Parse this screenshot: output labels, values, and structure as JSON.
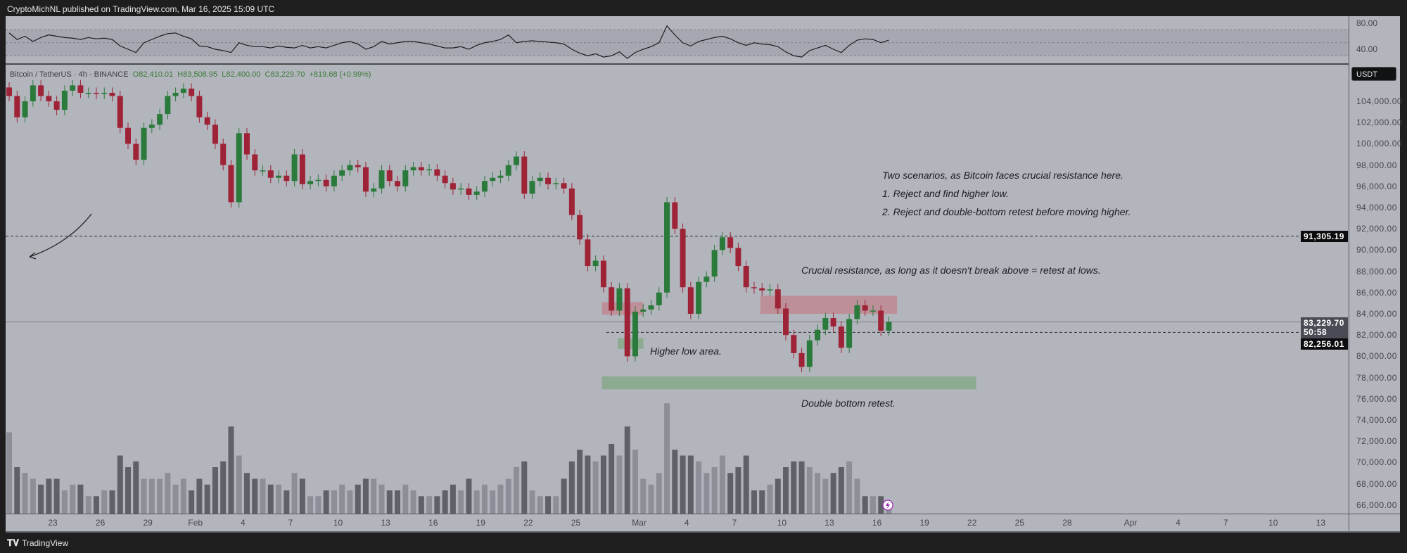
{
  "header": {
    "published": "CryptoMichNL published on TradingView.com, Mar 16, 2025 15:09 UTC"
  },
  "legend": {
    "symbol": "Bitcoin / TetherUS · 4h · BINANCE",
    "open": "O82,410.01",
    "high": "H83,508.95",
    "low": "L82,400.00",
    "close": "C83,229.70",
    "change": "+819.68 (+0.99%)"
  },
  "price_axis": {
    "currency": "USDT",
    "ticks": [
      "104,000.00",
      "102,000.00",
      "100,000.00",
      "98,000.00",
      "96,000.00",
      "94,000.00",
      "92,000.00",
      "90,000.00",
      "88,000.00",
      "86,000.00",
      "84,000.00",
      "82,000.00",
      "80,000.00",
      "78,000.00",
      "76,000.00",
      "74,000.00",
      "72,000.00",
      "70,000.00",
      "68,000.00",
      "66,000.00"
    ],
    "labels": {
      "resistance_line": "91,305.19",
      "last_price": "83,229.70",
      "countdown": "50:58",
      "support_line": "82,256.01"
    }
  },
  "rsi_axis": {
    "ticks": [
      "80.00",
      "40.00"
    ]
  },
  "time_axis": {
    "ticks": [
      {
        "label": "23",
        "day": 0
      },
      {
        "label": "26",
        "day": 3
      },
      {
        "label": "29",
        "day": 6
      },
      {
        "label": "Feb",
        "day": 9
      },
      {
        "label": "4",
        "day": 12
      },
      {
        "label": "7",
        "day": 15
      },
      {
        "label": "10",
        "day": 18
      },
      {
        "label": "13",
        "day": 21
      },
      {
        "label": "16",
        "day": 24
      },
      {
        "label": "19",
        "day": 27
      },
      {
        "label": "22",
        "day": 30
      },
      {
        "label": "25",
        "day": 33
      },
      {
        "label": "Mar",
        "day": 37
      },
      {
        "label": "4",
        "day": 40
      },
      {
        "label": "7",
        "day": 43
      },
      {
        "label": "10",
        "day": 46
      },
      {
        "label": "13",
        "day": 49
      },
      {
        "label": "16",
        "day": 52
      },
      {
        "label": "19",
        "day": 55
      },
      {
        "label": "22",
        "day": 58
      },
      {
        "label": "25",
        "day": 61
      },
      {
        "label": "28",
        "day": 64
      },
      {
        "label": "Apr",
        "day": 68
      },
      {
        "label": "4",
        "day": 71
      },
      {
        "label": "7",
        "day": 74
      },
      {
        "label": "10",
        "day": 77
      },
      {
        "label": "13",
        "day": 80
      }
    ]
  },
  "annotations": {
    "scenarios_title": "Two scenarios, as Bitcoin faces crucial resistance here.",
    "scenario_1": "1. Reject and find higher low.",
    "scenario_2": "2. Reject and double-bottom retest before moving higher.",
    "resistance_note": "Crucial resistance, as long as it doesn't break above = retest at lows.",
    "higher_low": "Higher low area.",
    "double_bottom": "Double bottom retest."
  },
  "footer": {
    "brand": "TradingView"
  },
  "colors": {
    "up": "#2a7a3b",
    "down": "#9e2336",
    "background": "#b3b5bd",
    "resistance_zone": "#c0838c",
    "support_zone": "#7fa882"
  },
  "chart_data": {
    "type": "candlestick",
    "symbol": "BTCUSDT",
    "interval": "4h",
    "start": "Jan 20",
    "closes_per_day": 2,
    "price_range": [
      65000,
      107000
    ],
    "closes": [
      104500,
      102500,
      104000,
      105500,
      104500,
      104000,
      103200,
      105000,
      105500,
      104800,
      104800,
      104700,
      104800,
      104500,
      101500,
      100000,
      98500,
      101500,
      101800,
      102800,
      104500,
      104800,
      105200,
      104500,
      102500,
      101800,
      100000,
      98000,
      94500,
      101000,
      99000,
      97500,
      97500,
      96800,
      97000,
      96500,
      99000,
      96200,
      96500,
      96600,
      96000,
      97000,
      97500,
      98000,
      97800,
      95500,
      95800,
      97500,
      96500,
      96000,
      97500,
      97800,
      97500,
      97600,
      97000,
      96300,
      95700,
      95800,
      95200,
      95500,
      96500,
      96800,
      97000,
      98000,
      98800,
      95300,
      96500,
      96800,
      96200,
      96300,
      95800,
      93300,
      91000,
      88500,
      89000,
      86500,
      84300,
      86400,
      80000,
      84200,
      84400,
      84800,
      86000,
      94500,
      92000,
      86500,
      84000,
      87000,
      87500,
      90000,
      91200,
      90200,
      88500,
      86500,
      86400,
      86200,
      86300,
      84500,
      82000,
      80300,
      79000,
      81500,
      82500,
      83600,
      82800,
      80800,
      83500,
      84800,
      84300,
      84300,
      82400,
      83230
    ],
    "volume_relative": [
      0.7,
      0.4,
      0.35,
      0.3,
      0.25,
      0.3,
      0.3,
      0.2,
      0.25,
      0.25,
      0.15,
      0.15,
      0.2,
      0.2,
      0.5,
      0.4,
      0.45,
      0.3,
      0.3,
      0.3,
      0.35,
      0.25,
      0.3,
      0.2,
      0.3,
      0.25,
      0.4,
      0.45,
      0.75,
      0.5,
      0.35,
      0.3,
      0.3,
      0.25,
      0.25,
      0.2,
      0.35,
      0.3,
      0.15,
      0.15,
      0.2,
      0.2,
      0.25,
      0.2,
      0.25,
      0.3,
      0.3,
      0.25,
      0.2,
      0.2,
      0.25,
      0.2,
      0.15,
      0.15,
      0.15,
      0.2,
      0.25,
      0.2,
      0.3,
      0.2,
      0.25,
      0.2,
      0.25,
      0.3,
      0.4,
      0.45,
      0.2,
      0.15,
      0.15,
      0.15,
      0.3,
      0.45,
      0.55,
      0.5,
      0.45,
      0.5,
      0.6,
      0.5,
      0.75,
      0.55,
      0.3,
      0.25,
      0.35,
      0.95,
      0.55,
      0.5,
      0.5,
      0.45,
      0.35,
      0.4,
      0.5,
      0.35,
      0.4,
      0.5,
      0.2,
      0.2,
      0.25,
      0.3,
      0.4,
      0.45,
      0.45,
      0.4,
      0.35,
      0.3,
      0.35,
      0.4,
      0.45,
      0.3,
      0.15,
      0.15,
      0.15,
      0.1
    ],
    "rsi": [
      65,
      55,
      60,
      52,
      58,
      62,
      60,
      58,
      57,
      55,
      58,
      56,
      57,
      55,
      45,
      40,
      35,
      50,
      55,
      60,
      64,
      65,
      60,
      56,
      45,
      44,
      40,
      38,
      35,
      50,
      46,
      44,
      44,
      42,
      45,
      43,
      42,
      46,
      42,
      44,
      42,
      46,
      50,
      52,
      48,
      40,
      44,
      52,
      48,
      50,
      52,
      52,
      50,
      48,
      45,
      42,
      42,
      44,
      40,
      46,
      50,
      52,
      55,
      62,
      50,
      52,
      53,
      52,
      51,
      50,
      48,
      40,
      34,
      30,
      33,
      28,
      30,
      36,
      26,
      35,
      40,
      44,
      50,
      76,
      62,
      50,
      45,
      52,
      55,
      58,
      60,
      56,
      50,
      46,
      50,
      48,
      47,
      44,
      36,
      30,
      28,
      38,
      42,
      46,
      40,
      35,
      46,
      54,
      56,
      55,
      50,
      54
    ],
    "rsi_bands": [
      30,
      70
    ],
    "horizontal_lines": [
      91305.19,
      82256.01
    ],
    "zones": [
      {
        "kind": "resistance",
        "from": "Feb 27",
        "to": "Mar 1",
        "low": 83900,
        "high": 85100
      },
      {
        "kind": "resistance",
        "from": "Mar 9",
        "to": "Mar 17",
        "low": 84000,
        "high": 85700
      },
      {
        "kind": "support",
        "from": "Feb 28",
        "to": "Mar 1",
        "low": 80700,
        "high": 81700
      },
      {
        "kind": "support",
        "from": "Feb 27",
        "to": "Mar 22",
        "low": 76900,
        "high": 78100
      }
    ]
  }
}
